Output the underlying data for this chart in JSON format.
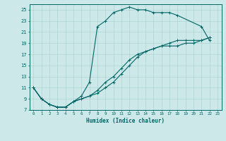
{
  "xlabel": "Humidex (Indice chaleur)",
  "ylabel": "",
  "xlim": [
    -0.5,
    23.5
  ],
  "ylim": [
    7,
    26
  ],
  "xticks": [
    0,
    1,
    2,
    3,
    4,
    5,
    6,
    7,
    8,
    9,
    10,
    11,
    12,
    13,
    14,
    15,
    16,
    17,
    18,
    19,
    20,
    21,
    22,
    23
  ],
  "yticks": [
    7,
    9,
    11,
    13,
    15,
    17,
    19,
    21,
    23,
    25
  ],
  "bg_color": "#cce8e8",
  "line_color": "#006666",
  "series": [
    {
      "x": [
        0,
        1,
        2,
        3,
        4,
        5,
        6,
        7,
        8,
        9,
        10,
        11,
        12,
        13,
        14,
        15,
        16,
        17,
        18,
        21,
        22
      ],
      "y": [
        11,
        9,
        8,
        7.5,
        7.5,
        8.5,
        9.5,
        12,
        22,
        23,
        24.5,
        25,
        25.5,
        25,
        25,
        24.5,
        24.5,
        24.5,
        24,
        22,
        19.5
      ]
    },
    {
      "x": [
        0,
        1,
        2,
        3,
        4,
        5,
        6,
        7,
        8,
        9,
        10,
        11,
        12,
        13,
        14,
        15,
        16,
        17,
        18,
        19,
        20,
        21,
        22
      ],
      "y": [
        11,
        9,
        8,
        7.5,
        7.5,
        8.5,
        9,
        9.5,
        10,
        11,
        12,
        13.5,
        15,
        16.5,
        17.5,
        18,
        18.5,
        18.5,
        18.5,
        19,
        19,
        19.5,
        20
      ]
    },
    {
      "x": [
        0,
        1,
        2,
        3,
        4,
        5,
        6,
        7,
        8,
        9,
        10,
        11,
        12,
        13,
        14,
        15,
        16,
        17,
        18,
        19,
        20,
        21,
        22
      ],
      "y": [
        11,
        9,
        8,
        7.5,
        7.5,
        8.5,
        9,
        9.5,
        10.5,
        12,
        13,
        14.5,
        16,
        17,
        17.5,
        18,
        18.5,
        19,
        19.5,
        19.5,
        19.5,
        19.5,
        20
      ]
    }
  ]
}
